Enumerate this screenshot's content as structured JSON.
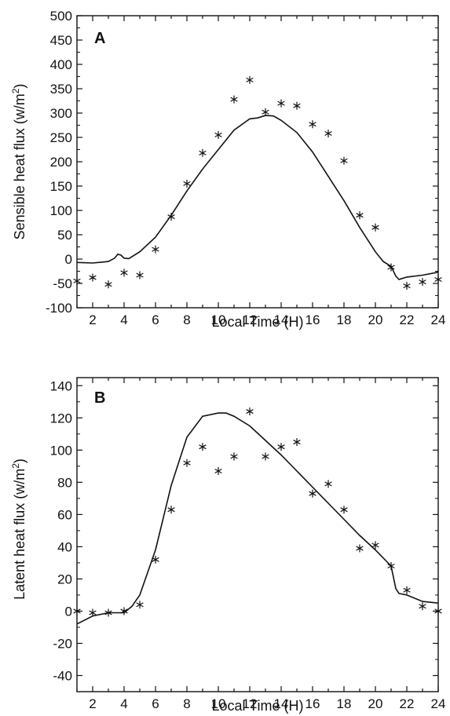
{
  "chart_data": [
    {
      "type": "line",
      "panel_label": "A",
      "xlabel": "Local Time (H)",
      "ylabel": "Sensible heat flux (w/m",
      "ylabel_sup": "2",
      "ylabel_close": ")",
      "xlim": [
        1,
        24
      ],
      "ylim": [
        -100,
        500
      ],
      "x_ticks": [
        2,
        4,
        6,
        8,
        10,
        12,
        14,
        16,
        18,
        20,
        22,
        24
      ],
      "y_ticks": [
        -100,
        -50,
        0,
        50,
        100,
        150,
        200,
        250,
        300,
        350,
        400,
        450,
        500
      ],
      "grid": false,
      "series": [
        {
          "style": "line",
          "points": [
            [
              1,
              -7
            ],
            [
              2,
              -8
            ],
            [
              3,
              -5
            ],
            [
              3.4,
              2
            ],
            [
              3.6,
              10
            ],
            [
              3.8,
              8
            ],
            [
              4,
              2
            ],
            [
              4.3,
              1
            ],
            [
              5,
              15
            ],
            [
              6,
              45
            ],
            [
              7,
              90
            ],
            [
              8,
              140
            ],
            [
              9,
              185
            ],
            [
              10,
              225
            ],
            [
              11,
              265
            ],
            [
              12,
              288
            ],
            [
              12.5,
              290
            ],
            [
              13,
              295
            ],
            [
              13.5,
              294
            ],
            [
              14,
              285
            ],
            [
              15,
              260
            ],
            [
              16,
              220
            ],
            [
              17,
              170
            ],
            [
              18,
              120
            ],
            [
              19,
              65
            ],
            [
              20,
              15
            ],
            [
              20.5,
              -5
            ],
            [
              21,
              -15
            ],
            [
              21.3,
              -35
            ],
            [
              21.5,
              -42
            ],
            [
              22,
              -37
            ],
            [
              23,
              -33
            ],
            [
              24,
              -27
            ]
          ]
        },
        {
          "style": "marker",
          "marker": "asterisk",
          "points": [
            [
              1,
              -45
            ],
            [
              2,
              -38
            ],
            [
              3,
              -52
            ],
            [
              4,
              -28
            ],
            [
              5,
              -33
            ],
            [
              6,
              20
            ],
            [
              7,
              87
            ],
            [
              8,
              155
            ],
            [
              9,
              218
            ],
            [
              10,
              255
            ],
            [
              11,
              328
            ],
            [
              12,
              368
            ],
            [
              13,
              302
            ],
            [
              14,
              320
            ],
            [
              15,
              315
            ],
            [
              16,
              277
            ],
            [
              17,
              258
            ],
            [
              18,
              202
            ],
            [
              19,
              90
            ],
            [
              20,
              65
            ],
            [
              21,
              -17
            ],
            [
              22,
              -55
            ],
            [
              23,
              -47
            ],
            [
              24,
              -42
            ]
          ]
        }
      ]
    },
    {
      "type": "line",
      "panel_label": "B",
      "xlabel": "Local Time (H)",
      "ylabel": "Latent heat flux (w/m",
      "ylabel_sup": "2",
      "ylabel_close": ")",
      "xlim": [
        1,
        24
      ],
      "ylim": [
        -50,
        145
      ],
      "x_ticks": [
        2,
        4,
        6,
        8,
        10,
        12,
        14,
        16,
        18,
        20,
        22,
        24
      ],
      "y_ticks": [
        -40,
        -20,
        0,
        20,
        40,
        60,
        80,
        100,
        120,
        140
      ],
      "grid": false,
      "series": [
        {
          "style": "line",
          "points": [
            [
              1,
              -8
            ],
            [
              2,
              -3
            ],
            [
              3,
              -1
            ],
            [
              4,
              -1
            ],
            [
              4.5,
              3
            ],
            [
              5,
              10
            ],
            [
              6,
              38
            ],
            [
              7,
              78
            ],
            [
              8,
              108
            ],
            [
              9,
              121
            ],
            [
              10,
              123
            ],
            [
              10.5,
              123
            ],
            [
              11,
              121
            ],
            [
              12,
              115
            ],
            [
              13,
              106
            ],
            [
              14,
              97
            ],
            [
              15,
              87
            ],
            [
              16,
              77
            ],
            [
              17,
              67
            ],
            [
              18,
              57
            ],
            [
              19,
              47
            ],
            [
              20,
              38
            ],
            [
              21,
              28
            ],
            [
              21.3,
              14
            ],
            [
              21.5,
              11
            ],
            [
              22,
              10
            ],
            [
              23,
              6
            ],
            [
              24,
              5
            ]
          ]
        },
        {
          "style": "marker",
          "marker": "asterisk",
          "points": [
            [
              1,
              0
            ],
            [
              2,
              -1
            ],
            [
              3,
              -1
            ],
            [
              4,
              0
            ],
            [
              5,
              4
            ],
            [
              6,
              32
            ],
            [
              7,
              63
            ],
            [
              8,
              92
            ],
            [
              9,
              102
            ],
            [
              10,
              87
            ],
            [
              11,
              96
            ],
            [
              12,
              124
            ],
            [
              13,
              96
            ],
            [
              14,
              102
            ],
            [
              15,
              105
            ],
            [
              16,
              73
            ],
            [
              17,
              79
            ],
            [
              18,
              63
            ],
            [
              19,
              39
            ],
            [
              20,
              41
            ],
            [
              21,
              28
            ],
            [
              22,
              13
            ],
            [
              23,
              3
            ],
            [
              24,
              0
            ]
          ]
        }
      ]
    }
  ]
}
